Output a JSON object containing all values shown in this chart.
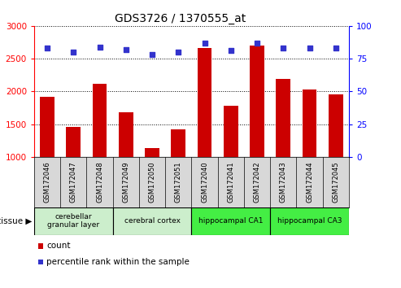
{
  "title": "GDS3726 / 1370555_at",
  "samples": [
    "GSM172046",
    "GSM172047",
    "GSM172048",
    "GSM172049",
    "GSM172050",
    "GSM172051",
    "GSM172040",
    "GSM172041",
    "GSM172042",
    "GSM172043",
    "GSM172044",
    "GSM172045"
  ],
  "counts": [
    1920,
    1460,
    2120,
    1680,
    1140,
    1420,
    2660,
    1780,
    2700,
    2190,
    2030,
    1950
  ],
  "percentiles": [
    83,
    80,
    84,
    82,
    78,
    80,
    87,
    81,
    87,
    83,
    83,
    83
  ],
  "ylim_left": [
    1000,
    3000
  ],
  "ylim_right": [
    0,
    100
  ],
  "yticks_left": [
    1000,
    1500,
    2000,
    2500,
    3000
  ],
  "yticks_right": [
    0,
    25,
    50,
    75,
    100
  ],
  "bar_color": "#cc0000",
  "dot_color": "#3333cc",
  "tissue_groups": [
    {
      "label": "cerebellar\ngranular layer",
      "start": 0,
      "end": 3,
      "color": "#cceecc"
    },
    {
      "label": "cerebral cortex",
      "start": 3,
      "end": 6,
      "color": "#cceecc"
    },
    {
      "label": "hippocampal CA1",
      "start": 6,
      "end": 9,
      "color": "#44ee44"
    },
    {
      "label": "hippocampal CA3",
      "start": 9,
      "end": 12,
      "color": "#44ee44"
    }
  ],
  "bg_color": "#ffffff",
  "title_size": 10,
  "bar_width": 0.55
}
